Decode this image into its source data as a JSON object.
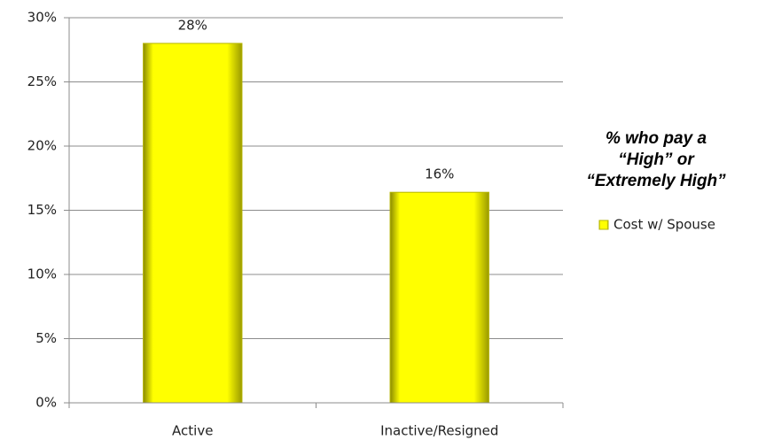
{
  "chart_data": {
    "type": "bar",
    "categories": [
      "Active",
      "Inactive/Resigned"
    ],
    "series": [
      {
        "name": "Cost w/ Spouse",
        "color": "#ffff00",
        "values": [
          28,
          16.4
        ],
        "value_labels": [
          "28%",
          "16%"
        ]
      }
    ],
    "legend_title": [
      "% who pay a",
      "“High” or",
      "“Extremely High”"
    ],
    "legend_position": "right",
    "ylim": [
      0,
      30
    ],
    "yticks": [
      {
        "value": 0,
        "label": "0%"
      },
      {
        "value": 5,
        "label": "5%"
      },
      {
        "value": 10,
        "label": "10%"
      },
      {
        "value": 15,
        "label": "15%"
      },
      {
        "value": 20,
        "label": "20%"
      },
      {
        "value": 25,
        "label": "25%"
      },
      {
        "value": 30,
        "label": "30%"
      }
    ],
    "grid": true
  }
}
